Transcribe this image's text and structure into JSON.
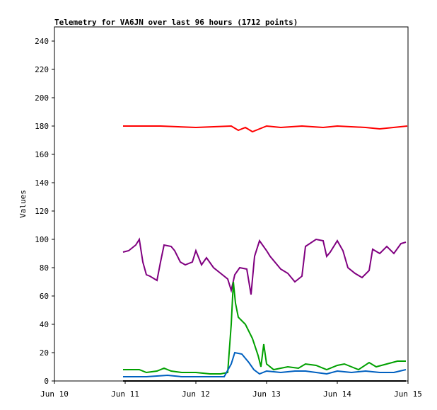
{
  "chart_data": {
    "type": "line",
    "title": "Telemetry for VA6JN over last 96 hours (1712 points)",
    "xlabel": "",
    "ylabel": "Values",
    "xlim": [
      "Jun 10",
      "Jun 15"
    ],
    "ylim": [
      0,
      250
    ],
    "x_ticks": [
      "Jun 10",
      "Jun 11",
      "Jun 12",
      "Jun 13",
      "Jun 14",
      "Jun 15"
    ],
    "y_ticks": [
      0,
      20,
      40,
      60,
      80,
      100,
      120,
      140,
      160,
      180,
      200,
      220,
      240
    ],
    "grid": false,
    "legend": "none",
    "series": [
      {
        "color": "#ff0000",
        "points": [
          [
            0.97,
            180
          ],
          [
            1.5,
            180
          ],
          [
            2.0,
            179
          ],
          [
            2.5,
            180
          ],
          [
            2.6,
            177
          ],
          [
            2.7,
            179
          ],
          [
            2.8,
            176
          ],
          [
            3.0,
            180
          ],
          [
            3.2,
            179
          ],
          [
            3.5,
            180
          ],
          [
            3.8,
            179
          ],
          [
            4.0,
            180
          ],
          [
            4.4,
            179
          ],
          [
            4.6,
            178
          ],
          [
            4.99,
            180
          ]
        ]
      },
      {
        "color": "#800080",
        "points": [
          [
            0.97,
            91
          ],
          [
            1.05,
            92
          ],
          [
            1.15,
            96
          ],
          [
            1.2,
            100
          ],
          [
            1.25,
            84
          ],
          [
            1.3,
            75
          ],
          [
            1.35,
            74
          ],
          [
            1.45,
            71
          ],
          [
            1.5,
            84
          ],
          [
            1.55,
            96
          ],
          [
            1.65,
            95
          ],
          [
            1.7,
            92
          ],
          [
            1.78,
            84
          ],
          [
            1.85,
            82
          ],
          [
            1.95,
            84
          ],
          [
            2.0,
            92
          ],
          [
            2.08,
            82
          ],
          [
            2.15,
            87
          ],
          [
            2.25,
            80
          ],
          [
            2.35,
            76
          ],
          [
            2.45,
            72
          ],
          [
            2.5,
            64
          ],
          [
            2.55,
            75
          ],
          [
            2.62,
            80
          ],
          [
            2.72,
            79
          ],
          [
            2.78,
            61
          ],
          [
            2.83,
            88
          ],
          [
            2.9,
            99
          ],
          [
            3.0,
            92
          ],
          [
            3.05,
            88
          ],
          [
            3.2,
            79
          ],
          [
            3.3,
            76
          ],
          [
            3.4,
            70
          ],
          [
            3.5,
            74
          ],
          [
            3.55,
            95
          ],
          [
            3.7,
            100
          ],
          [
            3.8,
            99
          ],
          [
            3.85,
            88
          ],
          [
            3.9,
            91
          ],
          [
            4.0,
            99
          ],
          [
            4.08,
            92
          ],
          [
            4.15,
            80
          ],
          [
            4.25,
            76
          ],
          [
            4.35,
            73
          ],
          [
            4.45,
            78
          ],
          [
            4.5,
            93
          ],
          [
            4.6,
            90
          ],
          [
            4.7,
            95
          ],
          [
            4.8,
            90
          ],
          [
            4.9,
            97
          ],
          [
            4.97,
            98
          ]
        ]
      },
      {
        "color": "#00a000",
        "points": [
          [
            0.97,
            8
          ],
          [
            1.2,
            8
          ],
          [
            1.3,
            6
          ],
          [
            1.45,
            7
          ],
          [
            1.55,
            9
          ],
          [
            1.65,
            7
          ],
          [
            1.8,
            6
          ],
          [
            2.0,
            6
          ],
          [
            2.2,
            5
          ],
          [
            2.35,
            5
          ],
          [
            2.45,
            6
          ],
          [
            2.5,
            40
          ],
          [
            2.53,
            70
          ],
          [
            2.56,
            55
          ],
          [
            2.6,
            45
          ],
          [
            2.7,
            40
          ],
          [
            2.8,
            30
          ],
          [
            2.88,
            18
          ],
          [
            2.92,
            10
          ],
          [
            2.96,
            26
          ],
          [
            3.0,
            12
          ],
          [
            3.1,
            8
          ],
          [
            3.2,
            9
          ],
          [
            3.3,
            10
          ],
          [
            3.45,
            9
          ],
          [
            3.55,
            12
          ],
          [
            3.7,
            11
          ],
          [
            3.85,
            8
          ],
          [
            4.0,
            11
          ],
          [
            4.1,
            12
          ],
          [
            4.2,
            10
          ],
          [
            4.3,
            8
          ],
          [
            4.45,
            13
          ],
          [
            4.55,
            10
          ],
          [
            4.7,
            12
          ],
          [
            4.85,
            14
          ],
          [
            4.97,
            14
          ]
        ]
      },
      {
        "color": "#0060c0",
        "points": [
          [
            0.97,
            3
          ],
          [
            1.3,
            3
          ],
          [
            1.6,
            4
          ],
          [
            1.8,
            3
          ],
          [
            2.1,
            3
          ],
          [
            2.4,
            3
          ],
          [
            2.5,
            12
          ],
          [
            2.55,
            20
          ],
          [
            2.65,
            19
          ],
          [
            2.75,
            13
          ],
          [
            2.82,
            8
          ],
          [
            2.9,
            5
          ],
          [
            3.0,
            7
          ],
          [
            3.2,
            6
          ],
          [
            3.4,
            7
          ],
          [
            3.55,
            7
          ],
          [
            3.7,
            6
          ],
          [
            3.85,
            5
          ],
          [
            4.0,
            7
          ],
          [
            4.2,
            6
          ],
          [
            4.4,
            7
          ],
          [
            4.6,
            6
          ],
          [
            4.8,
            6
          ],
          [
            4.97,
            8
          ]
        ]
      },
      {
        "color": "#000000",
        "points": [
          [
            0.97,
            0
          ],
          [
            4.97,
            0
          ]
        ]
      }
    ]
  }
}
